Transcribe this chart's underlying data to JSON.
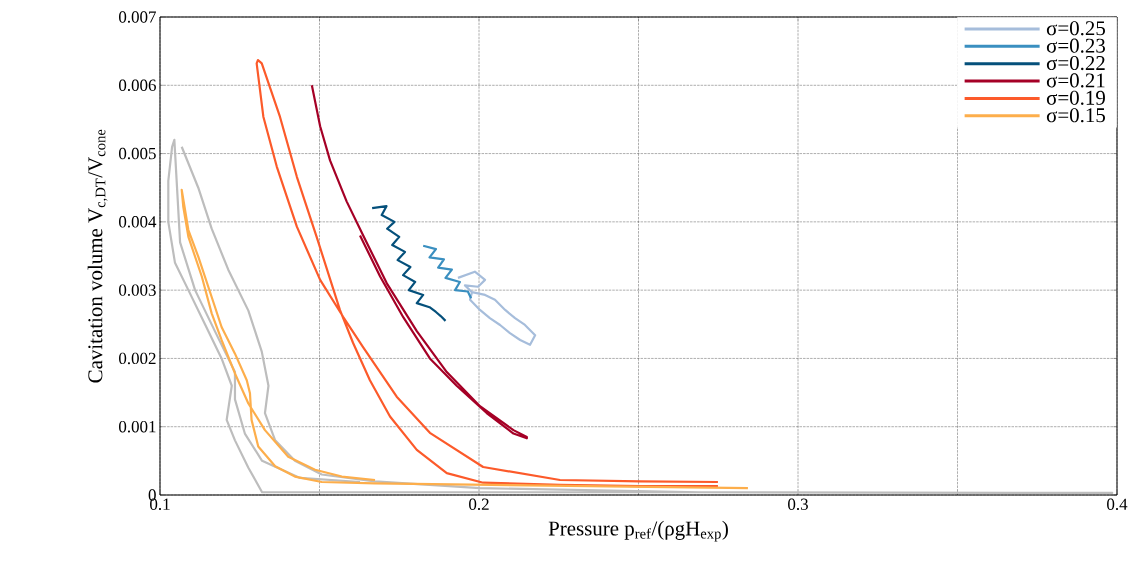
{
  "chart_data": {
    "type": "line",
    "xlabel": "Pressure p$_{ref}$/(ρgH$_{exp}$)",
    "ylabel": "Cavitation volume V$_{c,DT}$/V$_{cone}$",
    "xlim": [
      0.1,
      0.4
    ],
    "ylim": [
      0,
      0.007
    ],
    "xticks": [
      0.1,
      {
        "value": 0.15,
        "label": null
      },
      0.2,
      {
        "value": 0.25,
        "label": null
      },
      0.3,
      {
        "value": 0.35,
        "label": null
      },
      0.4
    ],
    "yticks": [
      0,
      0.001,
      0.002,
      0.003,
      0.004,
      0.005,
      0.006,
      0.007
    ],
    "grid": true,
    "legend": "top right",
    "marker": "none",
    "line_style": "solid",
    "series": [
      {
        "color": "#bdbdbd",
        "x": [
          0.1068,
          0.112,
          0.1162,
          0.1214,
          0.1277,
          0.1319,
          0.134,
          0.1329,
          0.1361,
          0.1423,
          0.1507,
          0.1674,
          0.2003,
          0.2693,
          0.3985,
          0.2693,
          0.1752,
          0.132,
          0.1277,
          0.1235,
          0.1209,
          0.1225,
          0.1193,
          0.1141,
          0.1089,
          0.1047,
          0.1026,
          0.1026,
          0.1038,
          0.1045,
          0.1063,
          0.111,
          0.1172,
          0.1235,
          0.1235,
          0.1266,
          0.132,
          0.1439,
          0.1627
        ],
        "values": [
          0.0051,
          0.0045,
          0.0039,
          0.0033,
          0.0027,
          0.0021,
          0.0016,
          0.0012,
          0.0008,
          0.0005,
          0.0003,
          0.0002,
          0.0001,
          4e-05,
          3e-05,
          4e-05,
          4e-05,
          4e-05,
          0.0004,
          0.0008,
          0.0011,
          0.0016,
          0.002,
          0.0025,
          0.003,
          0.0034,
          0.004,
          0.0046,
          0.0051,
          0.0052,
          0.0037,
          0.003,
          0.0024,
          0.0018,
          0.0014,
          0.0009,
          0.0005,
          0.00025,
          0.00019
        ]
      },
      {
        "name": "σ=0.25",
        "color": "#a6bddb",
        "x": [
          0.1934,
          0.1987,
          0.2019,
          0.1997,
          0.1956,
          0.1978,
          0.2019,
          0.205,
          0.2082,
          0.2113,
          0.2144,
          0.2176,
          0.216,
          0.2129,
          0.2097,
          0.2066,
          0.2034,
          0.2003,
          0.1972,
          0.1978
        ],
        "values": [
          0.00318,
          0.00327,
          0.00315,
          0.00305,
          0.00307,
          0.00297,
          0.00293,
          0.00286,
          0.00271,
          0.00259,
          0.00249,
          0.00234,
          0.0022,
          0.00227,
          0.00237,
          0.00249,
          0.00259,
          0.00271,
          0.00286,
          0.00297
        ]
      },
      {
        "name": "σ=0.23",
        "color": "#3a8fc0",
        "x": [
          0.1825,
          0.1865,
          0.1845,
          0.189,
          0.1872,
          0.1915,
          0.1895,
          0.194,
          0.1925,
          0.1965,
          0.1975
        ],
        "values": [
          0.00365,
          0.0036,
          0.00348,
          0.00345,
          0.00333,
          0.0033,
          0.00318,
          0.00312,
          0.003,
          0.00298,
          0.00288
        ]
      },
      {
        "name": "σ=0.22",
        "color": "#05507b",
        "x": [
          0.1665,
          0.171,
          0.1695,
          0.1735,
          0.1712,
          0.175,
          0.1728,
          0.1768,
          0.1745,
          0.1785,
          0.1762,
          0.18,
          0.178,
          0.1825,
          0.1805,
          0.1845,
          0.1865,
          0.188,
          0.1895
        ],
        "values": [
          0.0042,
          0.00423,
          0.0041,
          0.004,
          0.0039,
          0.00378,
          0.00366,
          0.00356,
          0.00344,
          0.00334,
          0.00322,
          0.00312,
          0.003,
          0.00293,
          0.00281,
          0.00275,
          0.00268,
          0.00262,
          0.00255
        ]
      },
      {
        "name": "σ=0.21",
        "color": "#a50026",
        "x": [
          0.1476,
          0.1502,
          0.1533,
          0.1585,
          0.1637,
          0.1711,
          0.1805,
          0.1899,
          0.2003,
          0.2108,
          0.215,
          0.215,
          0.2108,
          0.2024,
          0.193,
          0.1846,
          0.1763,
          0.169,
          0.1627
        ],
        "values": [
          0.006,
          0.0054,
          0.0049,
          0.0043,
          0.0038,
          0.0031,
          0.0024,
          0.0018,
          0.0013,
          0.00095,
          0.00085,
          0.00083,
          0.0009,
          0.0012,
          0.0016,
          0.002,
          0.0026,
          0.0032,
          0.0038
        ]
      },
      {
        "name": "σ=0.19",
        "color": "#fc5a2a",
        "x": [
          0.2749,
          0.2505,
          0.2254,
          0.2013,
          0.1846,
          0.1742,
          0.1636,
          0.1574,
          0.1502,
          0.1429,
          0.1366,
          0.1324,
          0.1303,
          0.1307,
          0.1319,
          0.1376,
          0.1429,
          0.1491,
          0.1564,
          0.1605,
          0.1658,
          0.1721,
          0.1805,
          0.1899,
          0.2013,
          0.2254,
          0.2505,
          0.2749
        ],
        "values": [
          0.00019,
          0.0002,
          0.00022,
          0.00041,
          0.00091,
          0.00144,
          0.00217,
          0.00261,
          0.00315,
          0.00393,
          0.00481,
          0.00554,
          0.00632,
          0.00637,
          0.00632,
          0.00554,
          0.00466,
          0.00378,
          0.00271,
          0.00223,
          0.00168,
          0.00115,
          0.00066,
          0.00032,
          0.00018,
          0.00015,
          0.00013,
          0.00013
        ]
      },
      {
        "name": "σ=0.15",
        "color": "#fdae4b",
        "x": [
          0.1674,
          0.157,
          0.1486,
          0.1402,
          0.1329,
          0.1277,
          0.1235,
          0.1193,
          0.1162,
          0.1131,
          0.1089,
          0.1073,
          0.1068,
          0.1089,
          0.112,
          0.1162,
          0.1193,
          0.1235,
          0.1272,
          0.1282,
          0.1287,
          0.1308,
          0.1361,
          0.1423,
          0.1507,
          0.1674,
          0.2843
        ],
        "values": [
          0.00022,
          0.00027,
          0.00037,
          0.00056,
          0.00095,
          0.00134,
          0.00178,
          0.00227,
          0.00266,
          0.0032,
          0.00378,
          0.00422,
          0.00447,
          0.00388,
          0.00349,
          0.0029,
          0.00246,
          0.00207,
          0.00168,
          0.00149,
          0.0011,
          0.00071,
          0.00042,
          0.00027,
          0.00019,
          0.00017,
          0.0001
        ]
      }
    ]
  }
}
